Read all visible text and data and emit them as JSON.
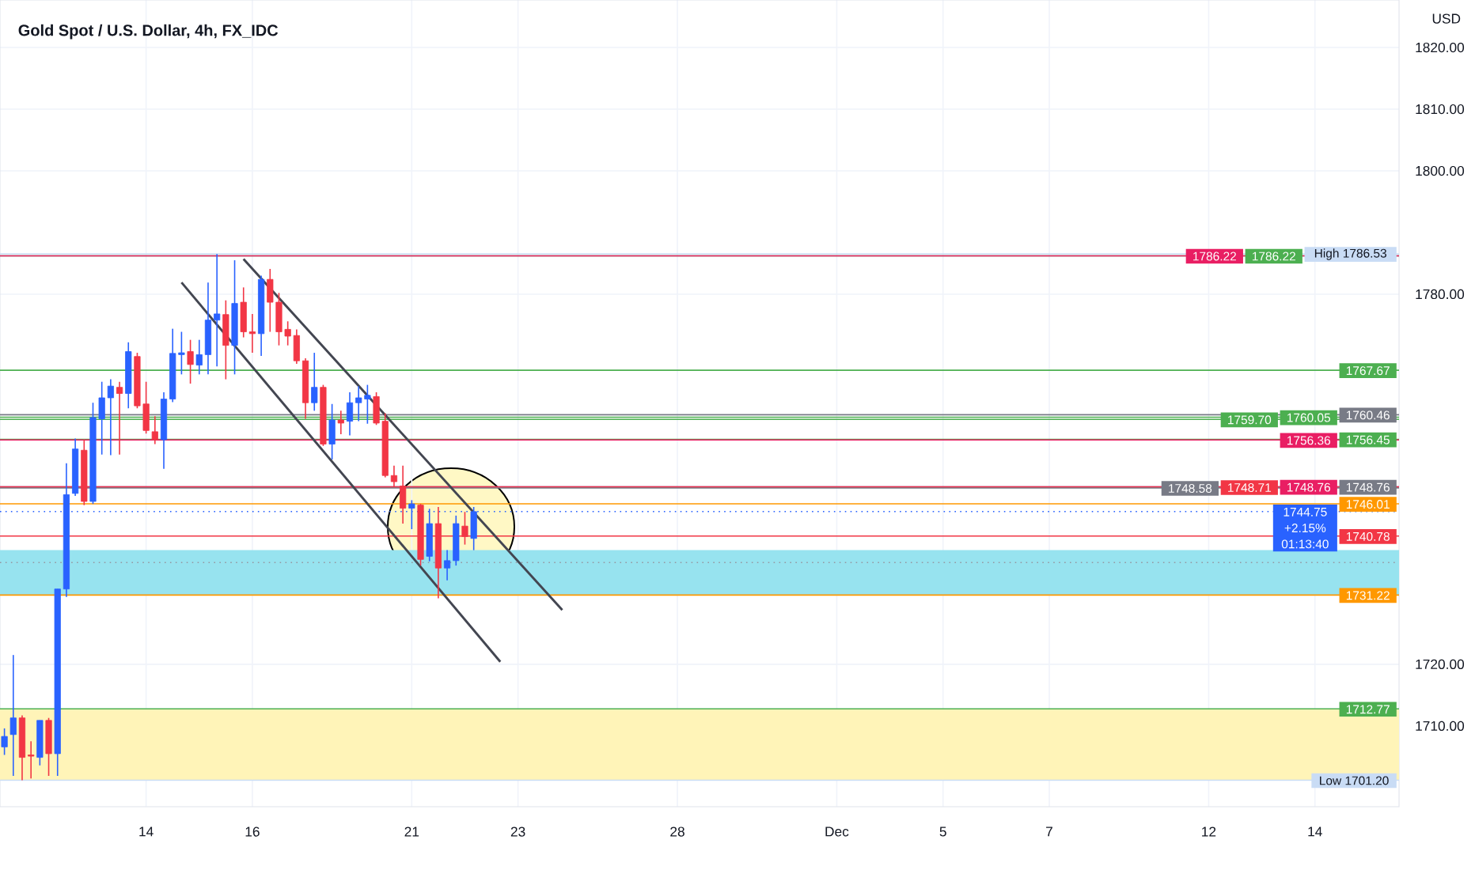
{
  "chart_data": {
    "type": "candlestick",
    "title": "Gold Spot / U.S. Dollar, 4h, FX_IDC",
    "ylabel": "USD",
    "categories": [
      null,
      null,
      null,
      null,
      null,
      null,
      null,
      null,
      null,
      null,
      null,
      null,
      null,
      null,
      null,
      null,
      "14",
      null,
      null,
      null,
      null,
      null,
      null,
      null,
      null,
      null,
      null,
      null,
      "16",
      null,
      null,
      null,
      null,
      null,
      null,
      null,
      null,
      null,
      null,
      null,
      null,
      null,
      null,
      null,
      null,
      null,
      "21",
      null,
      null,
      null,
      null,
      null,
      null,
      null,
      null,
      null,
      null,
      null,
      "23",
      null,
      null,
      null,
      null,
      null,
      null,
      null,
      null,
      null,
      null,
      null,
      null,
      null,
      null,
      null,
      null,
      null,
      "28",
      null,
      null,
      null,
      null,
      null,
      null,
      null,
      null,
      null,
      null,
      null,
      null,
      null,
      null,
      null,
      null,
      null,
      "Dec",
      null,
      null,
      null,
      null,
      null,
      null,
      null,
      null,
      null,
      null,
      null,
      "5",
      null,
      null,
      null,
      null,
      null,
      null,
      null,
      null,
      null,
      null,
      null,
      "7",
      null,
      null,
      null,
      null,
      null,
      null,
      null,
      null,
      null,
      null,
      null,
      null,
      null,
      null,
      null,
      null,
      null,
      "12",
      null,
      null,
      null,
      null,
      null,
      null,
      null,
      null,
      null,
      null,
      null,
      "14",
      null,
      null,
      null,
      null,
      null,
      null,
      null,
      null,
      null
    ],
    "ohlc": [
      [
        1706.6,
        1709.6,
        1705.3,
        1708.3
      ],
      [
        1708.6,
        1721.5,
        1701.9,
        1711.3
      ],
      [
        1711.3,
        1711.7,
        1701.2,
        1704.9
      ],
      [
        1705.3,
        1707.5,
        1701.5,
        1705.1
      ],
      [
        1704.9,
        1710.9,
        1703.6,
        1710.9
      ],
      [
        1710.9,
        1711.3,
        1701.9,
        1705.5
      ],
      [
        1705.5,
        1732.2,
        1701.9,
        1732.2
      ],
      [
        1732.2,
        1752.6,
        1730.9,
        1747.5
      ],
      [
        1747.7,
        1756.6,
        1747.3,
        1754.9
      ],
      [
        1754.7,
        1756.4,
        1745.8,
        1746.4
      ],
      [
        1746.4,
        1762.4,
        1746.0,
        1760.0
      ],
      [
        1759.8,
        1765.8,
        1754.0,
        1763.2
      ],
      [
        1763.2,
        1766.2,
        1753.9,
        1765.1
      ],
      [
        1764.9,
        1765.8,
        1754.0,
        1763.9
      ],
      [
        1763.9,
        1772.2,
        1761.5,
        1770.7
      ],
      [
        1769.9,
        1770.5,
        1761.5,
        1761.9
      ],
      [
        1762.2,
        1765.8,
        1757.4,
        1757.9
      ],
      [
        1757.7,
        1760.2,
        1755.7,
        1756.4
      ],
      [
        1756.4,
        1764.1,
        1751.7,
        1763.0
      ],
      [
        1763.0,
        1774.4,
        1762.5,
        1770.4
      ],
      [
        1770.2,
        1773.9,
        1767.0,
        1770.5
      ],
      [
        1770.7,
        1772.6,
        1765.5,
        1768.6
      ],
      [
        1768.5,
        1772.6,
        1767.0,
        1770.2
      ],
      [
        1770.2,
        1781.9,
        1767.0,
        1775.8
      ],
      [
        1775.8,
        1786.5,
        1768.3,
        1776.8
      ],
      [
        1776.7,
        1779.0,
        1766.2,
        1771.7
      ],
      [
        1771.7,
        1785.5,
        1767.0,
        1778.5
      ],
      [
        1778.7,
        1781.1,
        1773.0,
        1773.9
      ],
      [
        1773.9,
        1776.8,
        1770.5,
        1773.6
      ],
      [
        1773.6,
        1783.0,
        1770.0,
        1782.4
      ],
      [
        1782.4,
        1784.1,
        1773.9,
        1778.7
      ],
      [
        1778.7,
        1780.2,
        1771.7,
        1773.9
      ],
      [
        1774.3,
        1775.6,
        1771.7,
        1773.2
      ],
      [
        1773.3,
        1774.3,
        1768.7,
        1769.2
      ],
      [
        1769.2,
        1769.6,
        1759.8,
        1762.4
      ],
      [
        1762.4,
        1770.5,
        1761.1,
        1764.9
      ],
      [
        1764.9,
        1765.3,
        1755.4,
        1755.7
      ],
      [
        1755.7,
        1762.2,
        1753.2,
        1759.6
      ],
      [
        1759.6,
        1761.1,
        1757.3,
        1759.1
      ],
      [
        1759.4,
        1764.1,
        1757.1,
        1762.4
      ],
      [
        1762.4,
        1765.1,
        1759.4,
        1763.2
      ],
      [
        1763.0,
        1765.3,
        1759.0,
        1763.6
      ],
      [
        1763.4,
        1764.1,
        1758.8,
        1759.1
      ],
      [
        1759.4,
        1760.7,
        1750.3,
        1750.6
      ],
      [
        1750.6,
        1752.2,
        1748.8,
        1749.6
      ],
      [
        1748.9,
        1752.2,
        1742.8,
        1745.3
      ],
      [
        1745.3,
        1746.6,
        1741.9,
        1746.0
      ],
      [
        1745.8,
        1746.0,
        1736.0,
        1737.0
      ],
      [
        1737.5,
        1745.2,
        1736.7,
        1742.8
      ],
      [
        1742.8,
        1745.5,
        1730.7,
        1735.6
      ],
      [
        1735.6,
        1738.5,
        1733.6,
        1736.8
      ],
      [
        1736.8,
        1744.1,
        1736.0,
        1742.8
      ],
      [
        1742.4,
        1744.7,
        1739.4,
        1740.7
      ],
      [
        1740.4,
        1745.5,
        1738.5,
        1744.75
      ],
      null,
      null,
      null,
      null,
      null,
      null,
      null,
      null,
      null,
      null,
      null,
      null,
      null,
      null,
      null,
      null,
      null,
      null,
      null,
      null,
      null,
      null,
      null,
      null,
      null,
      null,
      null,
      null,
      null,
      null,
      null,
      null,
      null,
      null,
      null,
      null,
      null,
      null,
      null,
      null,
      null,
      null,
      null,
      null,
      null,
      null,
      null,
      null,
      null,
      null,
      null,
      null,
      null,
      null,
      null,
      null,
      null,
      null,
      null,
      null,
      null,
      null,
      null,
      null,
      null,
      null,
      null,
      null,
      null,
      null,
      null,
      null,
      null,
      null,
      null,
      null,
      null,
      null,
      null,
      null,
      null,
      null,
      null,
      null,
      null,
      null,
      null,
      null,
      null,
      null,
      null,
      null,
      null,
      null,
      null,
      null,
      null,
      null,
      null,
      null,
      null,
      null,
      null,
      null
    ],
    "colors": [
      "#2962ff",
      "#2962ff",
      "#f23645",
      "#f23645",
      "#2962ff",
      "#f23645",
      "#2962ff",
      "#2962ff",
      "#2962ff",
      "#f23645",
      "#2962ff",
      "#2962ff",
      "#2962ff",
      "#f23645",
      "#2962ff",
      "#f23645",
      "#f23645",
      "#f23645",
      "#2962ff",
      "#2962ff",
      "#2962ff",
      "#f23645",
      "#2962ff",
      "#2962ff",
      "#2962ff",
      "#f23645",
      "#2962ff",
      "#f23645",
      "#f23645",
      "#2962ff",
      "#f23645",
      "#f23645",
      "#f23645",
      "#f23645",
      "#f23645",
      "#2962ff",
      "#f23645",
      "#2962ff",
      "#f23645",
      "#2962ff",
      "#2962ff",
      "#2962ff",
      "#f23645",
      "#f23645",
      "#f23645",
      "#f23645",
      "#2962ff",
      "#f23645",
      "#2962ff",
      "#f23645",
      "#2962ff",
      "#2962ff",
      "#f23645",
      "#2962ff",
      null,
      null,
      null,
      null,
      null,
      null,
      null,
      null,
      null,
      null,
      null,
      null,
      null,
      null,
      null,
      null,
      null,
      null,
      null,
      null,
      null,
      null,
      null,
      null,
      null,
      null,
      null,
      null,
      null,
      null,
      null,
      null,
      null,
      null,
      null,
      null,
      null,
      null,
      null,
      null,
      null,
      null,
      null,
      null,
      null,
      null,
      null,
      null,
      null,
      null,
      null,
      null,
      null,
      null,
      null,
      null,
      null,
      null,
      null,
      null,
      null,
      null,
      null,
      null,
      null,
      null,
      null,
      null,
      null,
      null,
      null,
      null,
      null,
      null,
      null,
      null,
      null,
      null,
      null,
      null,
      null,
      null,
      null,
      null,
      null,
      null,
      null,
      null,
      null,
      null,
      null,
      null,
      null,
      null,
      null,
      null,
      null,
      null,
      null,
      null,
      null,
      null,
      null,
      null
    ],
    "series": [
      {
        "type": "line",
        "color": "#434651",
        "values": [
          null,
          null,
          null,
          null,
          null,
          null,
          null,
          null,
          null,
          null,
          null,
          null,
          null,
          null,
          null,
          null,
          null,
          null,
          null,
          null,
          null,
          null,
          null,
          null,
          null,
          null,
          null,
          1785.7,
          null,
          null,
          null,
          null,
          null,
          null,
          null,
          null,
          null,
          null,
          null,
          null,
          null,
          null,
          null,
          null,
          null,
          null,
          null,
          null,
          null,
          null,
          null,
          null,
          null,
          null,
          null,
          null,
          null,
          null,
          null,
          null,
          null,
          null,
          null,
          1728.8,
          null,
          null,
          null,
          null,
          null,
          null,
          null,
          null,
          null,
          null,
          null,
          null,
          null,
          null,
          null,
          null,
          null,
          null,
          null,
          null,
          null,
          null,
          null,
          null,
          null,
          null,
          null,
          null,
          null,
          null,
          null,
          null,
          null,
          null,
          null,
          null,
          null,
          null,
          null,
          null,
          null,
          null,
          null,
          null,
          null,
          null,
          null,
          null,
          null,
          null,
          null,
          null,
          null,
          null,
          null,
          null,
          null,
          null,
          null,
          null,
          null,
          null,
          null,
          null,
          null,
          null,
          null,
          null,
          null,
          null,
          null,
          null,
          null,
          null,
          null,
          null,
          null,
          null,
          null,
          null,
          null,
          null,
          null,
          null,
          null,
          null,
          null,
          null,
          null,
          null,
          null,
          null,
          null,
          null
        ]
      },
      {
        "type": "line",
        "color": "#434651",
        "values": [
          null,
          null,
          null,
          null,
          null,
          null,
          null,
          null,
          null,
          null,
          null,
          null,
          null,
          null,
          null,
          null,
          null,
          null,
          null,
          null,
          1781.9,
          null,
          null,
          null,
          null,
          null,
          null,
          null,
          null,
          null,
          null,
          null,
          null,
          null,
          null,
          null,
          null,
          null,
          null,
          null,
          null,
          null,
          null,
          null,
          null,
          null,
          null,
          null,
          null,
          null,
          null,
          null,
          null,
          null,
          null,
          null,
          1720.4,
          null,
          null,
          null,
          null,
          null,
          null,
          null,
          null,
          null,
          null,
          null,
          null,
          null,
          null,
          null,
          null,
          null,
          null,
          null,
          null,
          null,
          null,
          null,
          null,
          null,
          null,
          null,
          null,
          null,
          null,
          null,
          null,
          null,
          null,
          null,
          null,
          null,
          null,
          null,
          null,
          null,
          null,
          null,
          null,
          null,
          null,
          null,
          null,
          null,
          null,
          null,
          null,
          null,
          null,
          null,
          null,
          null,
          null,
          null,
          null,
          null,
          null,
          null,
          null,
          null,
          null,
          null,
          null,
          null,
          null,
          null,
          null,
          null,
          null,
          null,
          null,
          null,
          null,
          null,
          null,
          null,
          null,
          null,
          null,
          null,
          null,
          null,
          null,
          null,
          null,
          null,
          null,
          null,
          null,
          null,
          null,
          null,
          null,
          null,
          null,
          null
        ]
      }
    ],
    "ylim": [
      1696.9,
      1827.7
    ],
    "yticks": [
      {
        "value": 1710,
        "label": "1710.00"
      },
      {
        "value": 1720,
        "label": "1720.00"
      },
      {
        "value": 1780,
        "label": "1780.00"
      },
      {
        "value": 1800,
        "label": "1800.00"
      },
      {
        "value": 1810,
        "label": "1810.00"
      },
      {
        "value": 1820,
        "label": "1820.00"
      }
    ],
    "grid": true,
    "bands": [
      {
        "axis": "y",
        "from": 1701.2,
        "to": 1712.77,
        "color": "#fff4b8"
      },
      {
        "axis": "y",
        "from": 1731.22,
        "to": 1738.5,
        "color": "#97e3ef"
      }
    ],
    "annotations": [
      "+2.15%",
      "01:13:40"
    ],
    "ref_lines": [
      {
        "axis": "y",
        "value": 1786.53,
        "label": "High 1786.53",
        "color": "#c9dcf5",
        "line_style": "solid"
      },
      {
        "axis": "y",
        "value": 1786.22,
        "label": "1786.22",
        "color": "#4caf50",
        "line_style": "solid"
      },
      {
        "axis": "y",
        "value": 1786.22,
        "label": "1786.22",
        "color": "#e91e63",
        "line_style": "solid"
      },
      {
        "axis": "y",
        "value": 1767.67,
        "label": "1767.67",
        "color": "#4caf50",
        "line_style": "solid"
      },
      {
        "axis": "y",
        "value": 1760.46,
        "label": "1760.46",
        "color": "#787b86",
        "line_style": "solid"
      },
      {
        "axis": "y",
        "value": 1760.05,
        "label": "1760.05",
        "color": "#4caf50",
        "line_style": "solid"
      },
      {
        "axis": "y",
        "value": 1759.7,
        "label": "1759.70",
        "color": "#4caf50",
        "line_style": "solid"
      },
      {
        "axis": "y",
        "value": 1756.45,
        "label": "1756.45",
        "color": "#4caf50",
        "line_style": "solid"
      },
      {
        "axis": "y",
        "value": 1756.36,
        "label": "1756.36",
        "color": "#e91e63",
        "line_style": "solid"
      },
      {
        "axis": "y",
        "value": 1748.76,
        "label": "1748.76",
        "color": "#787b86",
        "line_style": "solid"
      },
      {
        "axis": "y",
        "value": 1748.76,
        "label": "1748.76",
        "color": "#e91e63",
        "line_style": "solid"
      },
      {
        "axis": "y",
        "value": 1748.71,
        "label": "1748.71",
        "color": "#f23645",
        "line_style": "solid"
      },
      {
        "axis": "y",
        "value": 1748.58,
        "label": "1748.58",
        "color": "#787b86",
        "line_style": "solid"
      },
      {
        "axis": "y",
        "value": 1746.01,
        "label": "1746.01",
        "color": "#ff9800",
        "line_style": "solid"
      },
      {
        "axis": "y",
        "value": 1744.75,
        "label": "1744.75",
        "color": "#2962ff",
        "line_style": "dotted"
      },
      {
        "axis": "y",
        "value": 1740.78,
        "label": "1740.78",
        "color": "#f23645",
        "line_style": "solid"
      },
      {
        "axis": "y",
        "value": 1736.5,
        "color": "#9598a1",
        "line_style": "dotted"
      },
      {
        "axis": "y",
        "value": 1731.22,
        "label": "1731.22",
        "color": "#ff9800",
        "line_style": "solid"
      },
      {
        "axis": "y",
        "value": 1712.77,
        "label": "1712.77",
        "color": "#4caf50",
        "line_style": "solid"
      },
      {
        "axis": "y",
        "value": 1701.2,
        "label": "Low 1701.20",
        "color": "#c9dcf5",
        "line_style": "solid"
      }
    ]
  }
}
